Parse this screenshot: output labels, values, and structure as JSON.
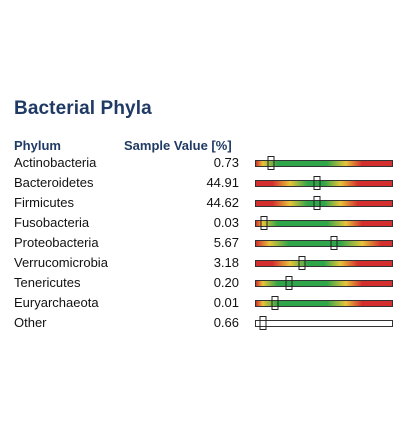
{
  "title": "Bacterial Phyla",
  "columns": {
    "phylum": "Phylum",
    "sample_value": "Sample Value [%]"
  },
  "colors": {
    "heading": "#1f3a64",
    "red": "#d32f2f",
    "yellow": "#e8c43a",
    "green": "#2fa64a"
  },
  "rows": [
    {
      "name": "Actinobacteria",
      "value": "0.73",
      "marker": 0.11,
      "gradient": "low"
    },
    {
      "name": "Bacteroidetes",
      "value": "44.91",
      "marker": 0.45,
      "gradient": "mid"
    },
    {
      "name": "Firmicutes",
      "value": "44.62",
      "marker": 0.45,
      "gradient": "mid"
    },
    {
      "name": "Fusobacteria",
      "value": "0.03",
      "marker": 0.06,
      "gradient": "low"
    },
    {
      "name": "Proteobacteria",
      "value": "5.67",
      "marker": 0.57,
      "gradient": "wide"
    },
    {
      "name": "Verrucomicrobia",
      "value": "3.18",
      "marker": 0.34,
      "gradient": "mid"
    },
    {
      "name": "Tenericutes",
      "value": "0.20",
      "marker": 0.24,
      "gradient": "low"
    },
    {
      "name": "Euryarchaeota",
      "value": "0.01",
      "marker": 0.14,
      "gradient": "low"
    },
    {
      "name": "Other",
      "value": "0.66",
      "marker": 0.05,
      "gradient": "none"
    }
  ]
}
